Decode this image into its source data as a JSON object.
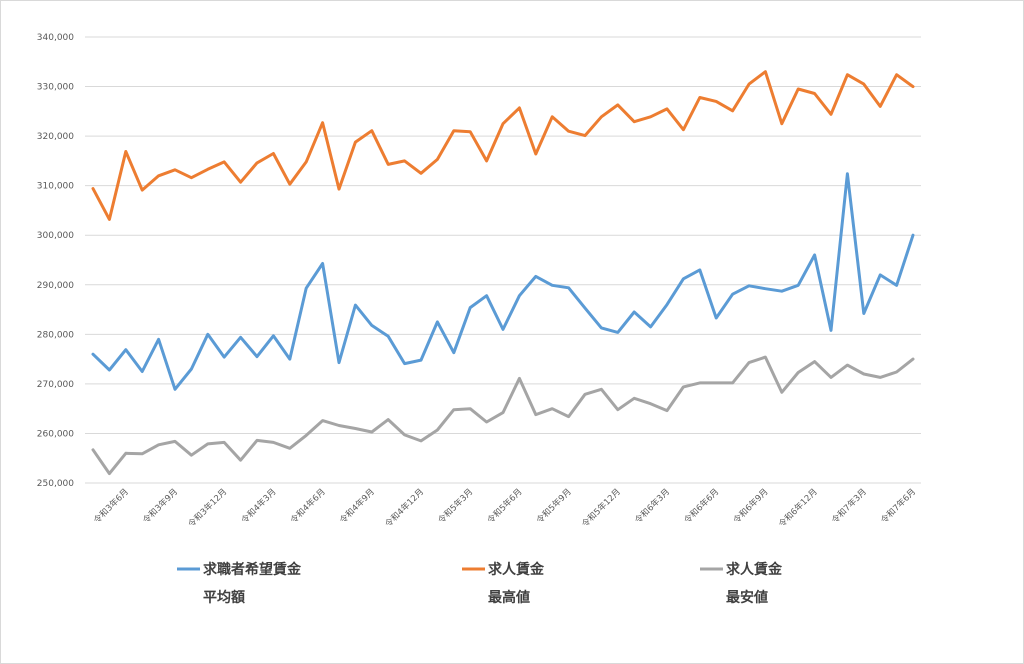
{
  "chart_data": {
    "type": "line",
    "title": "",
    "xlabel": "",
    "ylabel": "",
    "ylim": [
      250000,
      340000
    ],
    "y_ticks": [
      "250,000",
      "260,000",
      "270,000",
      "280,000",
      "290,000",
      "300,000",
      "310,000",
      "320,000",
      "330,000",
      "340,000"
    ],
    "grid": true,
    "legend_position": "bottom",
    "x_tick_labels": [
      "令和3年6月",
      "令和3年9月",
      "令和3年12月",
      "令和4年3月",
      "令和4年6月",
      "令和4年9月",
      "令和4年12月",
      "令和5年3月",
      "令和5年6月",
      "令和5年9月",
      "令和5年12月",
      "令和6年3月",
      "令和6年6月",
      "令和6年9月",
      "令和6年12月",
      "令和7年3月",
      "令和7年6月"
    ],
    "x_tick_positions": [
      2,
      5,
      8,
      11,
      14,
      17,
      20,
      23,
      26,
      29,
      32,
      35,
      38,
      41,
      44,
      47,
      50
    ],
    "series": [
      {
        "name": "求職者希望賃金平均額",
        "legend_lines": [
          "求職者希望賃金",
          "平均額"
        ],
        "color": "#5b9bd5",
        "values": [
          276000,
          272800,
          276900,
          272500,
          279000,
          268900,
          273000,
          280000,
          275400,
          279400,
          275500,
          279700,
          275000,
          289300,
          294300,
          274300,
          285900,
          281800,
          279600,
          274100,
          274800,
          282500,
          276300,
          285400,
          287800,
          281000,
          287800,
          291700,
          289900,
          289400,
          285300,
          281300,
          280400,
          284500,
          281500,
          286000,
          291200,
          293000,
          283300,
          288100,
          289800,
          289200,
          288700,
          289900,
          296000,
          280800,
          312400,
          284200,
          292000,
          289900,
          300000
        ]
      },
      {
        "name": "求人賃金最高値",
        "legend_lines": [
          "求人賃金",
          "最高値"
        ],
        "color": "#ed7d31",
        "values": [
          309400,
          303200,
          316900,
          309100,
          312000,
          313200,
          311600,
          313300,
          314800,
          310700,
          314600,
          316500,
          310300,
          314800,
          322700,
          309300,
          318800,
          321100,
          314300,
          315000,
          312500,
          315300,
          321100,
          320900,
          315000,
          322500,
          325700,
          316400,
          323900,
          321000,
          320100,
          323900,
          326300,
          322900,
          323900,
          325500,
          321300,
          327800,
          327000,
          325100,
          330500,
          333000,
          322500,
          329500,
          328600,
          324400,
          332400,
          330500,
          326000,
          332400,
          330000
        ]
      },
      {
        "name": "求人賃金最安値",
        "legend_lines": [
          "求人賃金",
          "最安値"
        ],
        "color": "#a5a5a5",
        "values": [
          256700,
          251900,
          256000,
          255900,
          257700,
          258400,
          255600,
          257900,
          258200,
          254600,
          258600,
          258200,
          257000,
          259600,
          262600,
          261600,
          261000,
          260300,
          262800,
          259700,
          258500,
          260700,
          264800,
          265000,
          262300,
          264200,
          271100,
          263800,
          265000,
          263400,
          267900,
          268900,
          264800,
          267100,
          266000,
          264600,
          269400,
          270200,
          270200,
          270200,
          274300,
          275400,
          268300,
          272300,
          274500,
          271300,
          273800,
          272000,
          271300,
          272400,
          275000
        ]
      }
    ]
  }
}
